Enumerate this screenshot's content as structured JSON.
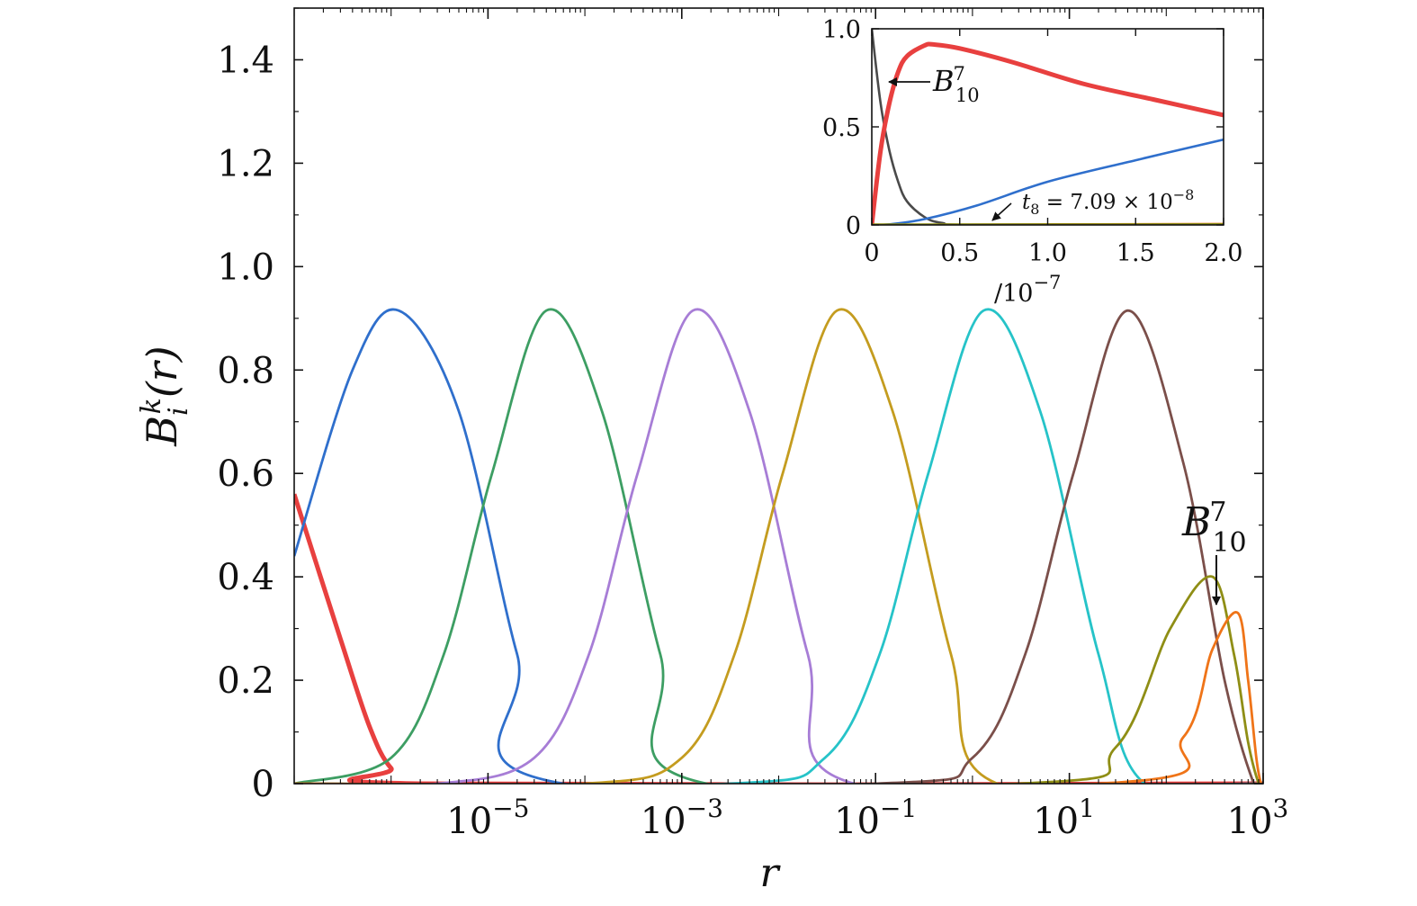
{
  "chart_data": [
    {
      "type": "line",
      "x_scale": "log",
      "xlabel": "r",
      "ylabel": "B_i^k(r)",
      "xlim": [
        1e-07,
        1000
      ],
      "ylim": [
        0,
        1.5
      ],
      "x_ticks": [
        "10^-5",
        "10^-3",
        "10^-1",
        "10^1",
        "10^3"
      ],
      "y_ticks": [
        "0",
        "0.2",
        "0.4",
        "0.6",
        "0.8",
        "1.0",
        "1.2",
        "1.4"
      ],
      "series_colors": [
        "#e8403f",
        "#2f6fcc",
        "#3d9e63",
        "#a77dd6",
        "#c49c1f",
        "#26c3c8",
        "#7b4f4a",
        "#8f8e15",
        "#ef7418"
      ],
      "series": [
        {
          "color": "#e8403f",
          "x": [
            1e-07,
            3e-07,
            6e-07,
            1e-06,
            2e-06
          ],
          "y": [
            0.56,
            0.28,
            0.11,
            0.03,
            0.0
          ]
        },
        {
          "color": "#2f6fcc",
          "x": [
            1e-07,
            4e-07,
            1.2e-06,
            5e-06,
            2e-05,
            6e-05
          ],
          "y": [
            0.44,
            0.8,
            0.915,
            0.72,
            0.25,
            0.0
          ]
        },
        {
          "color": "#3d9e63",
          "x": [
            1e-07,
            1e-06,
            3.5e-06,
            1.1e-05,
            4e-05,
            0.00015,
            0.0006,
            0.0018
          ],
          "y": [
            0.0,
            0.05,
            0.25,
            0.6,
            0.915,
            0.72,
            0.25,
            0.0
          ]
        },
        {
          "color": "#a77dd6",
          "x": [
            3e-06,
            3e-05,
            0.00011,
            0.00035,
            0.0013,
            0.005,
            0.02,
            0.06
          ],
          "y": [
            0.0,
            0.05,
            0.25,
            0.6,
            0.915,
            0.72,
            0.25,
            0.0
          ]
        },
        {
          "color": "#c49c1f",
          "x": [
            0.0001,
            0.001,
            0.0035,
            0.011,
            0.04,
            0.15,
            0.6,
            1.8
          ],
          "y": [
            0.0,
            0.05,
            0.25,
            0.6,
            0.915,
            0.72,
            0.25,
            0.0
          ]
        },
        {
          "color": "#26c3c8",
          "x": [
            0.003,
            0.03,
            0.11,
            0.35,
            1.3,
            5,
            20,
            60
          ],
          "y": [
            0.0,
            0.05,
            0.25,
            0.6,
            0.915,
            0.72,
            0.25,
            0.0
          ]
        },
        {
          "color": "#7b4f4a",
          "x": [
            0.1,
            1,
            3.5,
            11,
            40,
            150,
            400,
            800
          ],
          "y": [
            0.0,
            0.05,
            0.25,
            0.6,
            0.915,
            0.62,
            0.2,
            0.0
          ]
        },
        {
          "color": "#8f8e15",
          "x": [
            3,
            30,
            110,
            300,
            500,
            700,
            900
          ],
          "y": [
            0.0,
            0.07,
            0.3,
            0.4,
            0.25,
            0.08,
            0.0
          ]
        },
        {
          "color": "#ef7418",
          "x": [
            20,
            150,
            300,
            550,
            700,
            850,
            950
          ],
          "y": [
            0.0,
            0.09,
            0.26,
            0.33,
            0.2,
            0.05,
            0.0
          ]
        }
      ],
      "annotations": [
        {
          "label": "B_10^7",
          "x": 560,
          "y": 0.33
        }
      ]
    },
    {
      "type": "line",
      "inset": true,
      "xlabel": "/10^-7",
      "xlim": [
        0,
        2.0
      ],
      "ylim": [
        0,
        1.0
      ],
      "x_ticks": [
        "0",
        "0.5",
        "1.0",
        "1.5",
        "2.0"
      ],
      "y_ticks": [
        "0",
        "0.5",
        "1.0"
      ],
      "series": [
        {
          "color": "#4a4a4a",
          "x": [
            0,
            0.05,
            0.1,
            0.15,
            0.2,
            0.3,
            0.4,
            0.6,
            2.0
          ],
          "y": [
            1.0,
            0.62,
            0.38,
            0.22,
            0.12,
            0.04,
            0.01,
            0.0,
            0.0
          ]
        },
        {
          "color": "#e8403f",
          "x": [
            0,
            0.05,
            0.1,
            0.15,
            0.2,
            0.3,
            0.35,
            0.5,
            0.8,
            1.2,
            1.6,
            2.0
          ],
          "y": [
            0.0,
            0.38,
            0.62,
            0.78,
            0.86,
            0.915,
            0.92,
            0.9,
            0.83,
            0.72,
            0.64,
            0.56
          ]
        },
        {
          "color": "#2f6fcc",
          "x": [
            0,
            0.1,
            0.3,
            0.6,
            1.0,
            1.5,
            2.0
          ],
          "y": [
            0.0,
            0.003,
            0.03,
            0.1,
            0.22,
            0.33,
            0.435
          ]
        },
        {
          "color": "#ef7418",
          "x": [
            0,
            2.0
          ],
          "y": [
            0.0,
            0.005
          ]
        },
        {
          "color": "#8f8e15",
          "x": [
            0,
            2.0
          ],
          "y": [
            0.002,
            0.003
          ]
        }
      ],
      "annotations": [
        {
          "label": "B_10^7",
          "x": 0.08,
          "y": 0.73
        },
        {
          "label": "t_8 = 7.09 × 10^-8",
          "x": 0.65,
          "y": 0.02
        }
      ]
    }
  ]
}
